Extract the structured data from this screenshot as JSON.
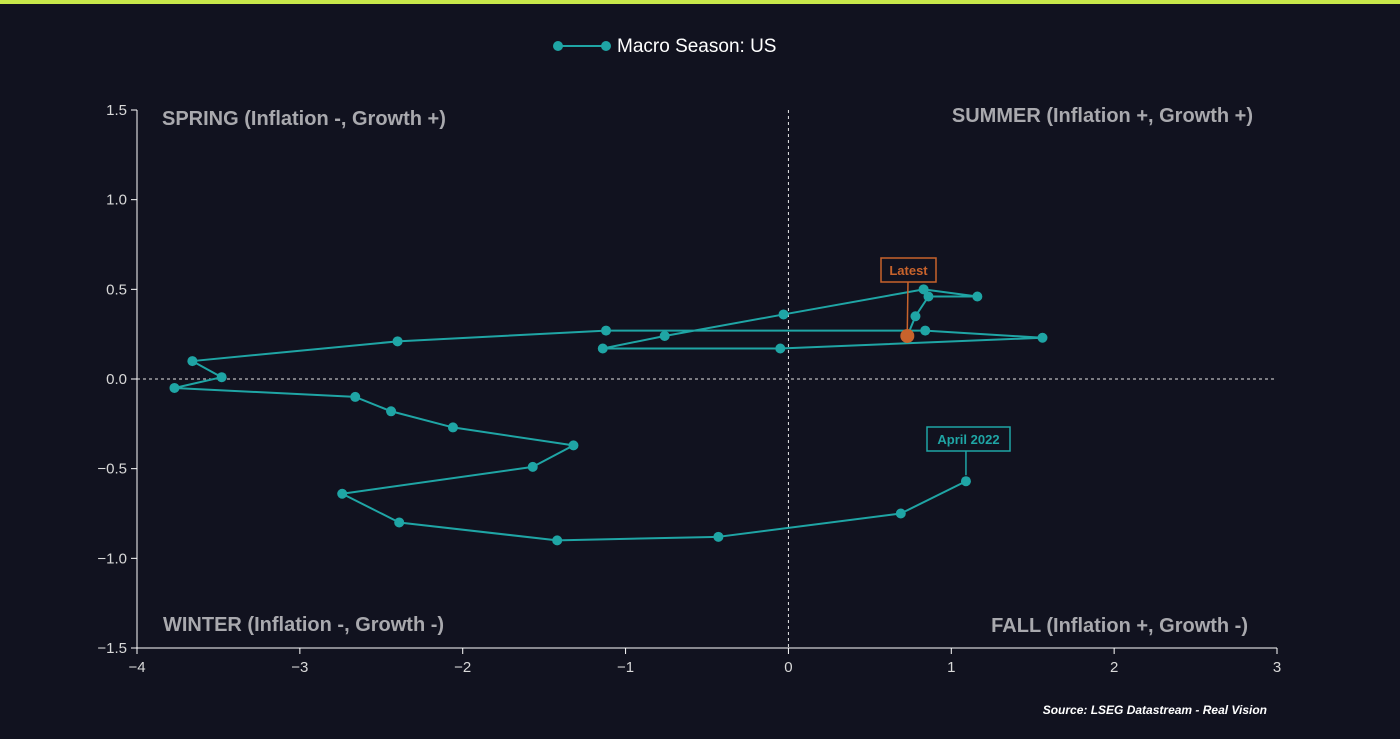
{
  "colors": {
    "background": "#11121f",
    "top_border": "#c8e84a",
    "series": "#1fa5a5",
    "latest": "#c8632c",
    "axis": "#ffffff",
    "tick_text": "#d9d9d9",
    "quadrant_text": "#a9a9ae"
  },
  "chart_data": {
    "type": "line",
    "series": [
      {
        "name": "Macro Season: US",
        "x": [
          1.09,
          0.69,
          -0.43,
          -1.42,
          -2.39,
          -2.74,
          -1.57,
          -1.32,
          -2.06,
          -2.44,
          -2.66,
          -3.77,
          -3.48,
          -3.66,
          -2.4,
          -1.12,
          0.84,
          1.56,
          -0.05,
          -1.14,
          -0.76,
          -0.03,
          0.83,
          1.16,
          0.86,
          0.78,
          0.73
        ],
        "y": [
          -0.57,
          -0.75,
          -0.88,
          -0.9,
          -0.8,
          -0.64,
          -0.49,
          -0.37,
          -0.27,
          -0.18,
          -0.1,
          -0.05,
          0.01,
          0.1,
          0.21,
          0.27,
          0.27,
          0.23,
          0.17,
          0.17,
          0.24,
          0.36,
          0.5,
          0.46,
          0.46,
          0.35,
          0.24
        ]
      }
    ],
    "xlim": [
      -4,
      3
    ],
    "ylim": [
      -1.5,
      1.5
    ],
    "xticks": [
      "−4",
      "−3",
      "−2",
      "−1",
      "0",
      "1",
      "2",
      "3"
    ],
    "yticks": [
      "1.5",
      "1.0",
      "0.5",
      "0.0",
      "−0.5",
      "−1.0",
      "−1.5"
    ],
    "legend": {
      "label": "Macro Season: US",
      "placement": "top-center"
    },
    "quadrants": {
      "spring": "SPRING (Inflation -, Growth +)",
      "summer": "SUMMER (Inflation +, Growth +)",
      "winter": "WINTER (Inflation -, Growth -)",
      "fall": "FALL (Inflation +, Growth -)"
    },
    "annotations": {
      "first": {
        "label": "April 2022",
        "x": 1.09,
        "y": -0.57
      },
      "latest": {
        "label": "Latest",
        "x": 0.73,
        "y": 0.24
      }
    },
    "source": "Source: LSEG Datastream - Real Vision"
  }
}
